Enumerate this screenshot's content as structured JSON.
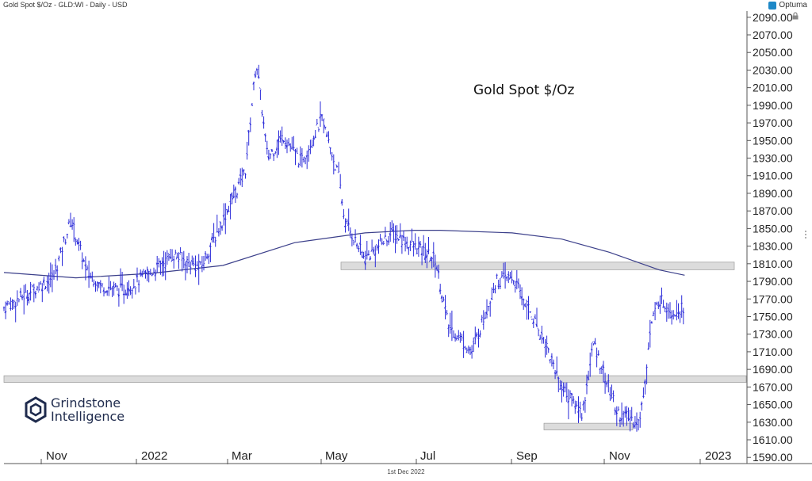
{
  "header": {
    "text": "Gold Spot $/Oz - GLD:WI - Daily - USD"
  },
  "brand": {
    "label": "Optuma",
    "icon": "optuma-logo-icon"
  },
  "title": "Gold Spot $/Oz",
  "footer": {
    "date": "1st Dec 2022"
  },
  "watermark": {
    "line1": "Grindstone",
    "line2": "Intelligence",
    "icon": "grindstone-hex-logo-icon"
  },
  "colors": {
    "price": "#2b2bd9",
    "ma": "#3b3f8a",
    "zone_fill": "#dcdcdc",
    "zone_stroke": "#9a9a9a",
    "axis": "#555555",
    "text": "#222222"
  },
  "chart_data": {
    "type": "line",
    "title": "Gold Spot $/Oz",
    "x_ticks": [
      "Nov",
      "2022",
      "Mar",
      "May",
      "Jul",
      "Sep",
      "Nov",
      "2023"
    ],
    "y_ticks": [
      "2090.00",
      "2070.00",
      "2050.00",
      "2030.00",
      "2010.00",
      "1990.00",
      "1970.00",
      "1950.00",
      "1930.00",
      "1910.00",
      "1890.00",
      "1870.00",
      "1850.00",
      "1830.00",
      "1810.00",
      "1790.00",
      "1770.00",
      "1750.00",
      "1730.00",
      "1710.00",
      "1690.00",
      "1670.00",
      "1650.00",
      "1630.00",
      "1610.00",
      "1590.00"
    ],
    "ylim": [
      1583,
      2097
    ],
    "price_series": {
      "name": "Gold Spot $/Oz",
      "x": [
        "2021-10-01",
        "2021-10-15",
        "2021-11-01",
        "2021-11-12",
        "2021-11-22",
        "2021-12-01",
        "2021-12-15",
        "2022-01-01",
        "2022-01-15",
        "2022-02-01",
        "2022-02-15",
        "2022-03-01",
        "2022-03-08",
        "2022-03-15",
        "2022-03-25",
        "2022-04-05",
        "2022-04-18",
        "2022-04-29",
        "2022-05-02",
        "2022-05-15",
        "2022-06-01",
        "2022-06-14",
        "2022-06-28",
        "2022-07-06",
        "2022-07-21",
        "2022-08-05",
        "2022-08-15",
        "2022-08-25",
        "2022-09-05",
        "2022-09-15",
        "2022-09-28",
        "2022-10-05",
        "2022-10-20",
        "2022-11-03",
        "2022-11-10",
        "2022-11-15",
        "2022-11-24",
        "2022-12-01"
      ],
      "y": [
        1760,
        1775,
        1795,
        1860,
        1800,
        1785,
        1780,
        1800,
        1820,
        1805,
        1860,
        1915,
        2040,
        1930,
        1955,
        1925,
        1975,
        1905,
        1860,
        1815,
        1845,
        1830,
        1815,
        1740,
        1710,
        1790,
        1795,
        1760,
        1720,
        1670,
        1640,
        1720,
        1640,
        1630,
        1740,
        1770,
        1755,
        1762
      ]
    },
    "ma_series": {
      "name": "",
      "x": [
        "2021-10-01",
        "2021-11-15",
        "2022-01-01",
        "2022-02-15",
        "2022-04-01",
        "2022-05-15",
        "2022-06-15",
        "2022-07-01",
        "2022-08-15",
        "2022-09-15",
        "2022-10-15",
        "2022-11-15",
        "2022-12-01"
      ],
      "y": [
        1800,
        1794,
        1799,
        1808,
        1834,
        1845,
        1848,
        1848,
        1845,
        1838,
        1823,
        1803,
        1797
      ]
    },
    "zones": [
      {
        "low": 1805,
        "high": 1810
      },
      {
        "low": 1677,
        "high": 1681
      },
      {
        "low": 1623,
        "high": 1627
      }
    ],
    "grid": false,
    "legend": "none"
  }
}
